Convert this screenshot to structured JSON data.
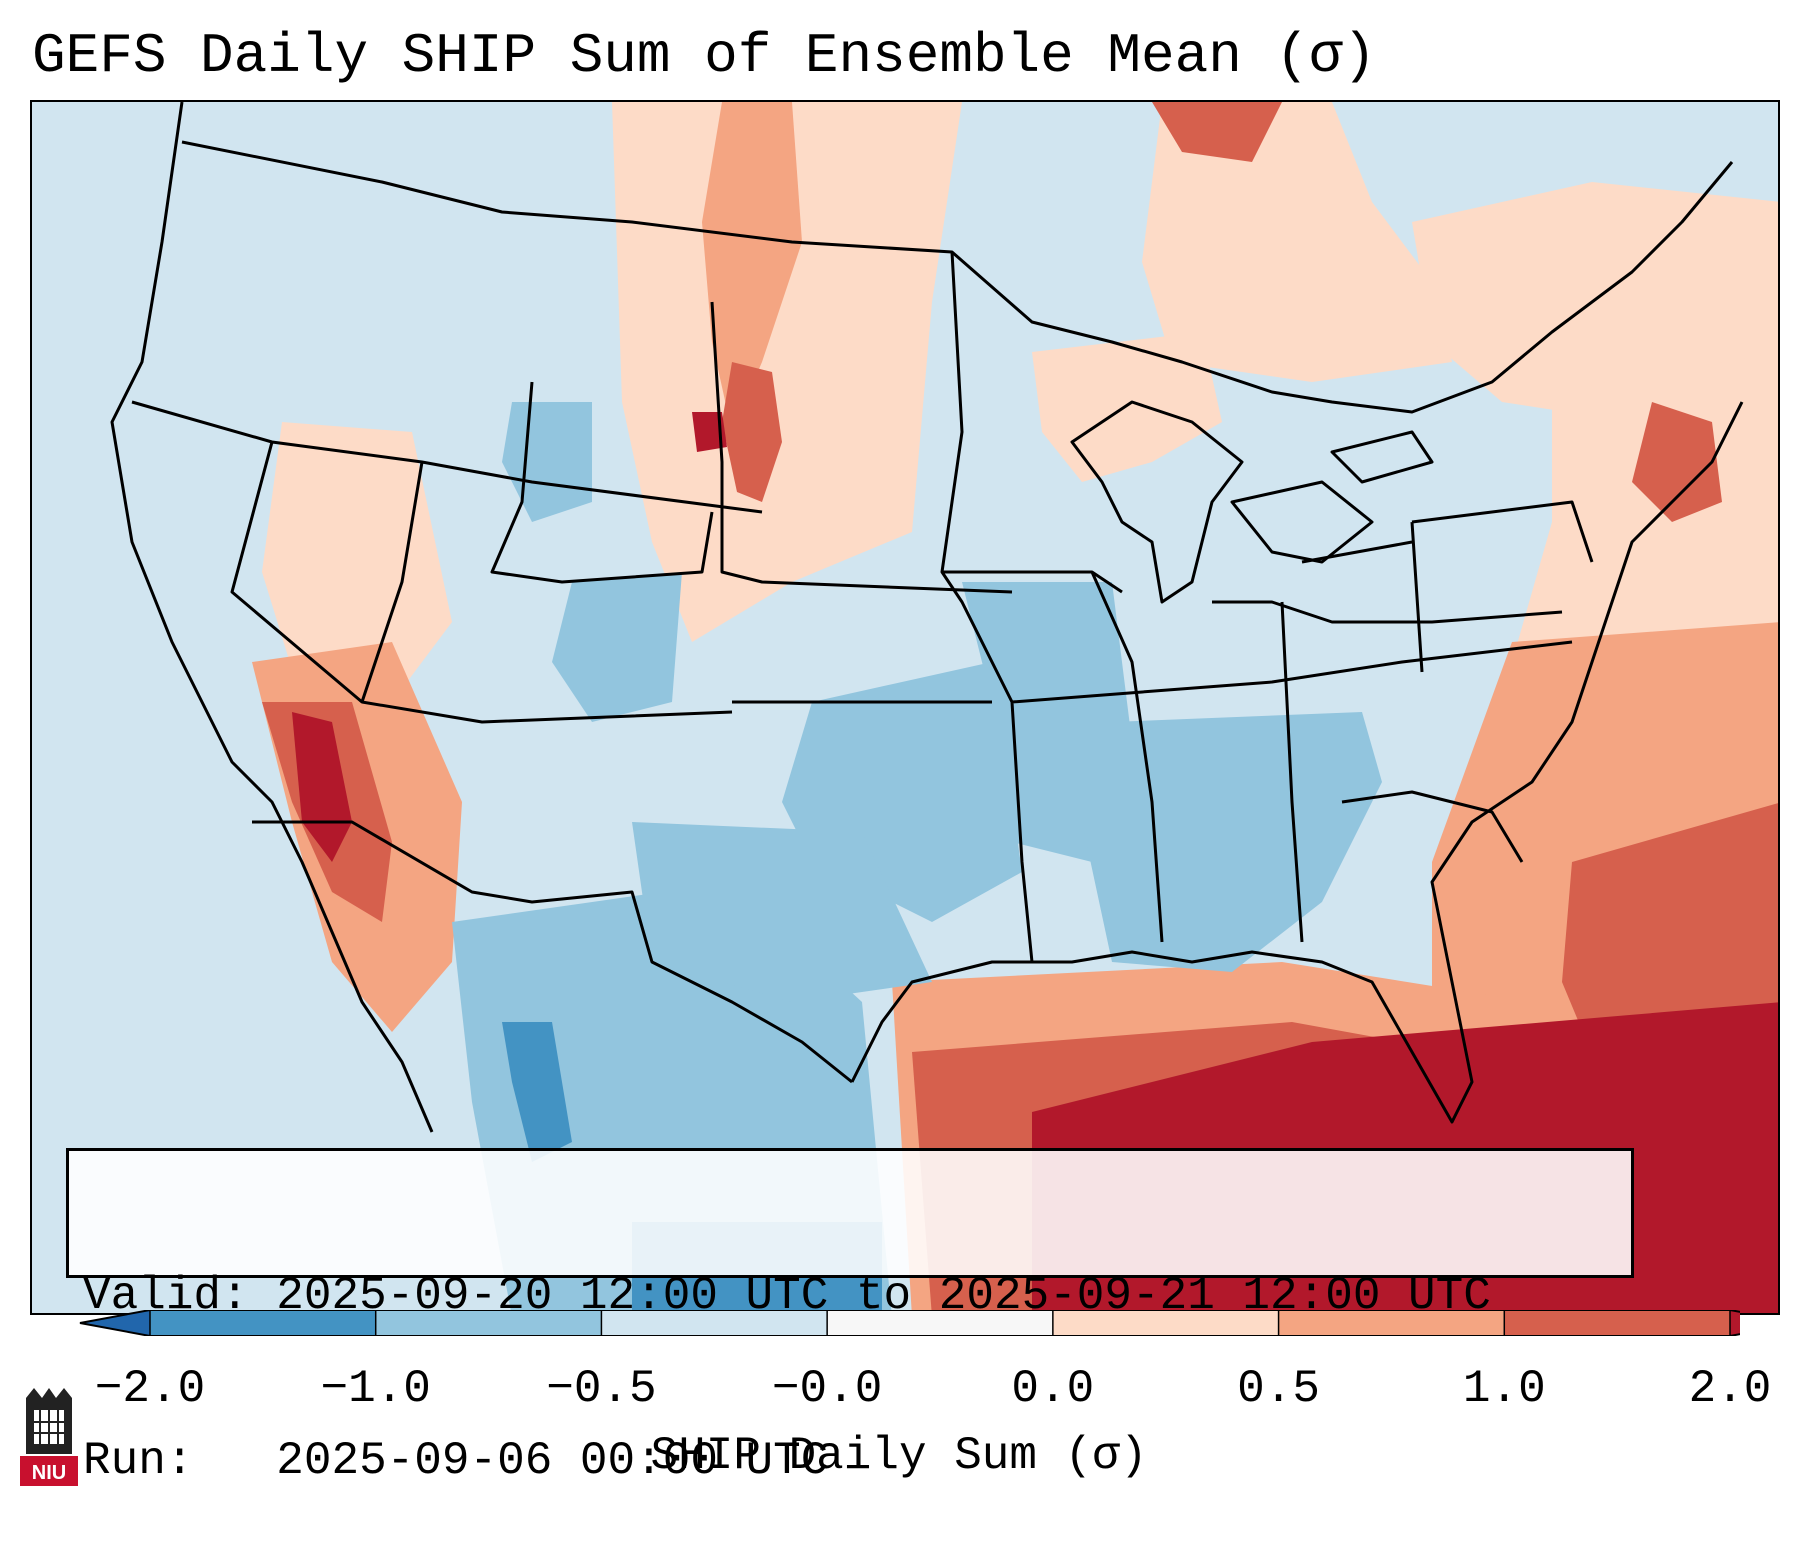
{
  "title": "GEFS Daily SHIP Sum of Ensemble Mean (σ)",
  "info": {
    "valid_label": "Valid:",
    "valid_value": "2025-09-20 12:00 UTC to 2025-09-21 12:00 UTC",
    "run_label": "Run:",
    "run_value": "2025-09-06 00:00 UTC"
  },
  "colorbar": {
    "label": "SHIP Daily Sum (σ)",
    "ticks": [
      "−2.0",
      "−1.0",
      "−0.5",
      "−0.0",
      "0.0",
      "0.5",
      "1.0",
      "2.0"
    ],
    "under_color": "#2166ac",
    "over_color": "#b2182b",
    "bin_colors": [
      "#4393c3",
      "#92c5de",
      "#d1e5f0",
      "#f7f7f7",
      "#fddbc7",
      "#f4a582",
      "#d6604d"
    ]
  },
  "map": {
    "region": "Contiguous United States",
    "colors": {
      "ocean_land_base": "#d1e5f0",
      "neg_moderate": "#92c5de",
      "neg_strong": "#4393c3",
      "neg_extreme": "#2166ac",
      "pos_weak": "#fddbc7",
      "pos_moderate": "#f4a582",
      "pos_strong": "#d6604d",
      "pos_extreme": "#b2182b",
      "borders": "#000000"
    }
  },
  "logo": {
    "text": "NIU"
  }
}
